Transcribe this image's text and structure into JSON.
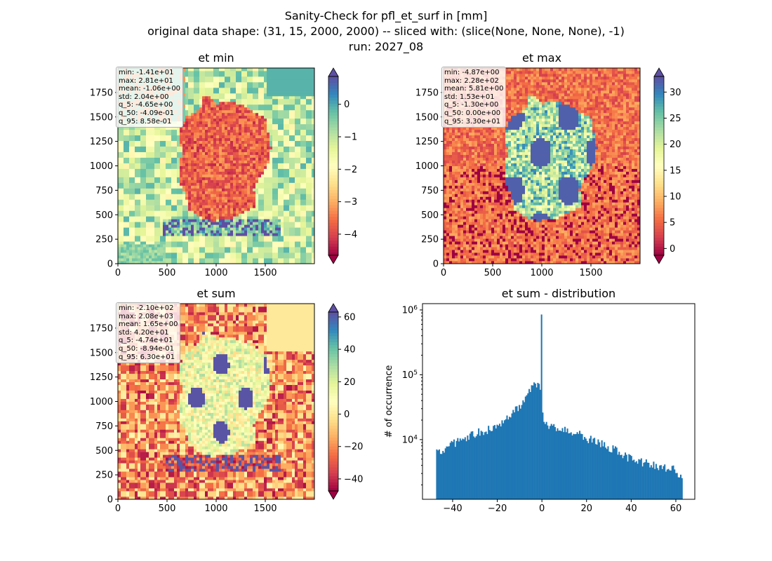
{
  "figure": {
    "title_line1": "Sanity-Check for pfl_et_surf in [mm]",
    "title_line2": "original data shape: (31, 15, 2000, 2000) -- sliced with: (slice(None, None, None), -1)",
    "title_line3": "run: 2027_08",
    "colormap": "Spectral",
    "cmap_colors": [
      "#9e0142",
      "#d53e4f",
      "#f46d43",
      "#fdae61",
      "#fee08b",
      "#ffffbf",
      "#e6f598",
      "#abdda4",
      "#66c2a5",
      "#3288bd",
      "#5e4fa2"
    ]
  },
  "chart_data": [
    {
      "type": "heatmap",
      "title": "et min",
      "x_ticks": [
        "0",
        "500",
        "1000",
        "1500"
      ],
      "y_ticks": [
        "0",
        "250",
        "500",
        "750",
        "1000",
        "1250",
        "1500",
        "1750"
      ],
      "xlim": [
        0,
        2000
      ],
      "ylim": [
        0,
        2000
      ],
      "colorbar": {
        "range": [
          -4.65,
          0.858
        ],
        "ticks": [
          0,
          -1,
          -2,
          -3,
          -4
        ],
        "tick_labels": [
          "0",
          "−1",
          "−2",
          "−3",
          "−4"
        ],
        "extend": "both"
      },
      "stats": [
        "min: -1.41e+01",
        "max: 2.81e+01",
        "mean: -1.06e+00",
        "std: 2.04e+00",
        "q_5: -4.65e+00",
        "q_50: -4.09e-01",
        "q_95: 8.58e-01"
      ]
    },
    {
      "type": "heatmap",
      "title": "et max",
      "x_ticks": [
        "0",
        "500",
        "1000",
        "1500"
      ],
      "y_ticks": [
        "0",
        "250",
        "500",
        "750",
        "1000",
        "1250",
        "1500",
        "1750"
      ],
      "xlim": [
        0,
        2000
      ],
      "ylim": [
        0,
        2000
      ],
      "colorbar": {
        "range": [
          -1.3,
          33.0
        ],
        "ticks": [
          0,
          5,
          10,
          15,
          20,
          25,
          30
        ],
        "tick_labels": [
          "0",
          "5",
          "10",
          "15",
          "20",
          "25",
          "30"
        ],
        "extend": "both"
      },
      "stats": [
        "min: -4.87e+00",
        "max: 2.28e+02",
        "mean: 5.81e+00",
        "std: 1.53e+01",
        "q_5: -1.30e+00",
        "q_50: 0.00e+00",
        "q_95: 3.30e+01"
      ]
    },
    {
      "type": "heatmap",
      "title": "et sum",
      "x_ticks": [
        "0",
        "500",
        "1000",
        "1500"
      ],
      "y_ticks": [
        "0",
        "250",
        "500",
        "750",
        "1000",
        "1250",
        "1500",
        "1750"
      ],
      "xlim": [
        0,
        2000
      ],
      "ylim": [
        0,
        2000
      ],
      "colorbar": {
        "range": [
          -47.4,
          63.0
        ],
        "ticks": [
          60,
          40,
          20,
          0,
          -20,
          -40
        ],
        "tick_labels": [
          "60",
          "40",
          "20",
          "0",
          "−20",
          "−40"
        ],
        "extend": "both"
      },
      "stats": [
        "min: -2.10e+02",
        "max: 2.08e+03",
        "mean: 1.65e+00",
        "std: 4.20e+01",
        "q_5: -4.74e+01",
        "q_50: -8.94e-01",
        "q_95: 6.30e+01"
      ]
    },
    {
      "type": "bar",
      "title": "et sum - distribution",
      "ylabel": "# of occurrence",
      "xlabel": "",
      "yscale": "log",
      "xlim": [
        -53.5,
        68.5
      ],
      "ylim": [
        1200,
        1250000
      ],
      "x_ticks": [
        -40,
        -20,
        0,
        20,
        40,
        60
      ],
      "x_tick_labels": [
        "−40",
        "−20",
        "0",
        "20",
        "40",
        "60"
      ],
      "y_ticks": [
        10000,
        100000,
        1000000
      ],
      "y_tick_labels": [
        "10<tspan baseline-shift='super' font-size='9'>4</tspan>",
        "10<tspan baseline-shift='super' font-size='9'>5</tspan>",
        "10<tspan baseline-shift='super' font-size='9'>6</tspan>"
      ],
      "bar_color": "#1f77b4",
      "bins": {
        "start": -47.4,
        "end": 63.0,
        "count": 200
      },
      "spike": {
        "x": 0,
        "value": 850000
      },
      "profile": [
        [
          -47.4,
          6500
        ],
        [
          -40,
          9000
        ],
        [
          -30,
          13000
        ],
        [
          -20,
          16500
        ],
        [
          -10,
          33000
        ],
        [
          -3,
          75000
        ],
        [
          -0.6,
          70000
        ],
        [
          0.6,
          17500
        ],
        [
          5,
          16500
        ],
        [
          10,
          15500
        ],
        [
          20,
          11000
        ],
        [
          30,
          8000
        ],
        [
          40,
          5200
        ],
        [
          50,
          4200
        ],
        [
          60,
          3500
        ],
        [
          63,
          2500
        ]
      ]
    }
  ]
}
